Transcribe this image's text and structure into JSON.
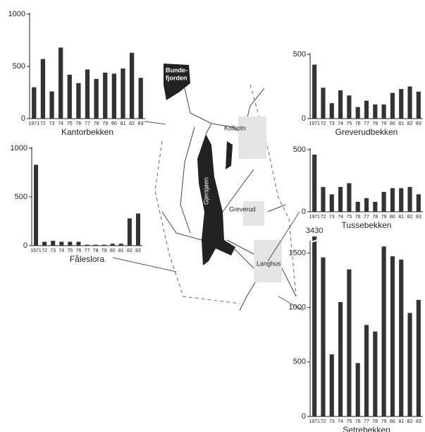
{
  "chart_data": [
    {
      "type": "bar",
      "title": "Kantorbekken",
      "categories": [
        "1971",
        "72",
        "73",
        "74",
        "75",
        "76",
        "77",
        "78",
        "79",
        "80",
        "81",
        "82",
        "83"
      ],
      "values": [
        300,
        570,
        260,
        680,
        420,
        340,
        470,
        380,
        440,
        430,
        480,
        630,
        390
      ],
      "ylim": [
        0,
        1000
      ],
      "yticks": [
        0,
        500,
        1000
      ],
      "color": "#333333"
    },
    {
      "type": "bar",
      "title": "Fåleslora",
      "categories": [
        "1971",
        "72",
        "73",
        "74",
        "75",
        "76",
        "77",
        "78",
        "79",
        "80",
        "81",
        "82",
        "83"
      ],
      "values": [
        830,
        40,
        50,
        40,
        40,
        40,
        10,
        10,
        10,
        20,
        20,
        280,
        330
      ],
      "ylim": [
        0,
        1000
      ],
      "yticks": [
        0,
        500,
        1000
      ],
      "color": "#333333"
    },
    {
      "type": "bar",
      "title": "Greverudbekken",
      "categories": [
        "1971",
        "72",
        "73",
        "74",
        "75",
        "76",
        "77",
        "78",
        "79",
        "80",
        "81",
        "82",
        "83"
      ],
      "values": [
        420,
        240,
        120,
        220,
        180,
        90,
        140,
        110,
        110,
        200,
        230,
        250,
        210
      ],
      "ylim": [
        0,
        500
      ],
      "yticks": [
        0,
        500
      ],
      "color": "#333333"
    },
    {
      "type": "bar",
      "title": "Tussebekken",
      "categories": [
        "1971",
        "72",
        "73",
        "74",
        "75",
        "76",
        "77",
        "78",
        "79",
        "80",
        "81",
        "82",
        "83"
      ],
      "values": [
        460,
        200,
        140,
        200,
        230,
        80,
        110,
        80,
        160,
        190,
        190,
        200,
        140
      ],
      "ylim": [
        0,
        500
      ],
      "yticks": [
        0,
        500
      ],
      "color": "#333333"
    },
    {
      "type": "bar",
      "title": "Setrebekken",
      "categories": [
        "1971",
        "72",
        "73",
        "74",
        "75",
        "76",
        "77",
        "78",
        "79",
        "80",
        "81",
        "82",
        "83"
      ],
      "values": [
        3430,
        1460,
        570,
        1050,
        1350,
        490,
        840,
        780,
        1560,
        1470,
        1440,
        950,
        1070
      ],
      "value_labels": [
        "3430",
        null,
        null,
        null,
        null,
        null,
        null,
        null,
        null,
        null,
        null,
        null,
        null
      ],
      "ylim": [
        0,
        1600
      ],
      "yticks": [
        0,
        500,
        1000,
        1500
      ],
      "color": "#333333"
    }
  ],
  "map": {
    "labels": [
      "Bunde-",
      "fjorden",
      "Kolbotn",
      "Gjersjøen",
      "Greverud",
      "Langhus"
    ]
  }
}
